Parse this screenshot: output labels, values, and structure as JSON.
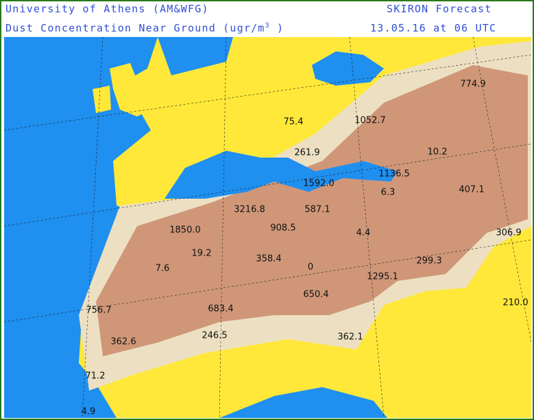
{
  "header": {
    "institution": "University of Athens (AM&WFG)",
    "product": "SKIRON Forecast",
    "title": "Dust Concentration Near Ground (ugr/m",
    "title_exponent": "3",
    "title_close": ")",
    "valid_time": "13.05.16 at 06 UTC"
  },
  "map": {
    "labels": [
      "774.9",
      "1052.7",
      "75.4",
      "261.9",
      "10.2",
      "1136.5",
      "1592.0",
      "6.3",
      "407.1",
      "3216.8",
      "587.1",
      "1850.0",
      "908.5",
      "4.4",
      "306.9",
      "19.2",
      "358.4",
      "0",
      "299.3",
      "7.6",
      "1295.1",
      "650.4",
      "756.7",
      "683.4",
      "210.0",
      "246.5",
      "362.6",
      "362.1",
      "71.2",
      "4.9"
    ]
  }
}
